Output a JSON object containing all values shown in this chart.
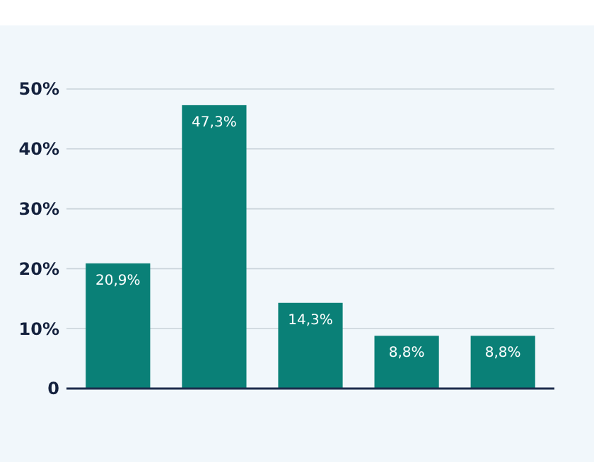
{
  "chart_data": {
    "type": "bar",
    "categories": [
      null,
      null,
      null,
      null,
      null
    ],
    "values": [
      20.9,
      47.3,
      14.3,
      8.8,
      8.8
    ],
    "color": "#0a8077",
    "value_labels": [
      "20,9%",
      "47,3%",
      "14,3%",
      "8,8%",
      "8,8%"
    ],
    "ylim": [
      0,
      50
    ],
    "yticks": [
      {
        "value": 0,
        "label": "0"
      },
      {
        "value": 10,
        "label": "10%"
      },
      {
        "value": 20,
        "label": "20%"
      },
      {
        "value": 30,
        "label": "30%"
      },
      {
        "value": 40,
        "label": "40%"
      },
      {
        "value": 50,
        "label": "50%"
      }
    ],
    "grid": "y"
  }
}
